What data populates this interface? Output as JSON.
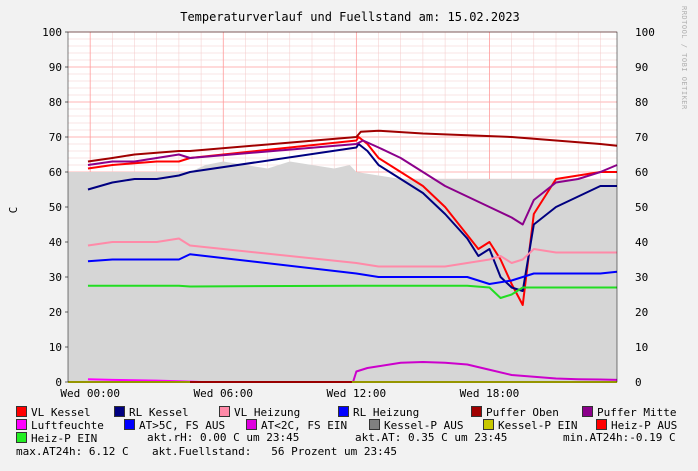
{
  "watermark": "RRDTOOL / TOBI OETIKER",
  "chart_data": {
    "type": "line",
    "title": "Temperaturverlauf und Fuellstand am: 15.02.2023",
    "ylabel": "C",
    "ylim": [
      0,
      100
    ],
    "yticks": [
      0,
      10,
      20,
      30,
      40,
      50,
      60,
      70,
      80,
      90,
      100
    ],
    "xlim": [
      -1,
      23.75
    ],
    "xticks": [
      {
        "value": 0,
        "label": "Wed 00:00"
      },
      {
        "value": 6,
        "label": "Wed 06:00"
      },
      {
        "value": 12,
        "label": "Wed 12:00"
      },
      {
        "value": 18,
        "label": "Wed 18:00"
      }
    ],
    "grid": true,
    "area": {
      "name": "Luftfeuchte-Hintergrund",
      "color": "#d6d6d6",
      "x": [
        -1,
        2,
        4.5,
        5.2,
        6,
        7,
        8,
        9,
        10,
        11,
        11.7,
        12,
        13,
        14,
        15,
        16,
        17,
        18,
        19,
        20,
        21,
        22,
        23,
        23.75
      ],
      "y": [
        60,
        60,
        60,
        62,
        63,
        62,
        61,
        63,
        62,
        61,
        62,
        60,
        59,
        58,
        58,
        58,
        58,
        58,
        58,
        58,
        58,
        58,
        58,
        58
      ]
    },
    "series": [
      {
        "name": "VL Kessel",
        "color": "#ff0000",
        "x": [
          -0.1,
          1,
          2,
          3,
          4,
          4.5,
          12,
          12.1,
          12.5,
          13,
          14,
          15,
          16,
          17,
          17.5,
          18,
          18.5,
          19,
          19.5,
          20,
          21,
          22,
          23,
          23.75
        ],
        "y": [
          61,
          62,
          62.5,
          63,
          63,
          64,
          69,
          70,
          68,
          64,
          60,
          56,
          50,
          42,
          38,
          40,
          35,
          28,
          22,
          48,
          58,
          59,
          60,
          60
        ]
      },
      {
        "name": "RL Kessel",
        "color": "#000080",
        "x": [
          -0.1,
          1,
          2,
          3,
          4,
          4.5,
          12,
          12.1,
          12.5,
          13,
          14,
          15,
          16,
          17,
          17.5,
          18,
          18.5,
          19,
          19.5,
          20,
          21,
          22,
          23,
          23.75
        ],
        "y": [
          55,
          57,
          58,
          58,
          59,
          60,
          67,
          68,
          66,
          62,
          58,
          54,
          48,
          41,
          36,
          38,
          30,
          27,
          26,
          45,
          50,
          53,
          56,
          56
        ]
      },
      {
        "name": "VL Heizung",
        "color": "#ff8aa8",
        "x": [
          -0.1,
          1,
          2,
          3,
          4,
          4.5,
          12,
          13,
          14,
          15,
          16,
          17,
          18,
          18.5,
          19,
          19.5,
          20,
          21,
          22,
          23,
          23.75
        ],
        "y": [
          39,
          40,
          40,
          40,
          41,
          39,
          34,
          33,
          33,
          33,
          33,
          34,
          35,
          36,
          34,
          35,
          38,
          37,
          37,
          37,
          37
        ]
      },
      {
        "name": "RL Heizung",
        "color": "#0000ff",
        "x": [
          -0.1,
          1,
          2,
          3,
          4,
          4.5,
          12,
          13,
          14,
          15,
          16,
          17,
          18,
          19,
          20,
          21,
          22,
          23,
          23.75
        ],
        "y": [
          34.5,
          35,
          35,
          35,
          35,
          36.5,
          31,
          30,
          30,
          30,
          30,
          30,
          28,
          29,
          31,
          31,
          31,
          31,
          31.5
        ]
      },
      {
        "name": "Puffer Oben",
        "color": "#a00000",
        "x": [
          -0.1,
          1,
          2,
          3,
          4,
          4.5,
          12,
          12.2,
          13,
          15,
          17,
          19,
          21,
          23,
          23.75
        ],
        "y": [
          63,
          64,
          65,
          65.5,
          66,
          66,
          70,
          71.5,
          71.8,
          71,
          70.5,
          70,
          69,
          68,
          67.5
        ]
      },
      {
        "name": "Puffer Mitte",
        "color": "#8b008b",
        "x": [
          -0.1,
          1,
          2,
          3,
          4,
          4.5,
          12,
          12.3,
          13,
          14,
          15,
          16,
          17,
          18,
          19,
          19.5,
          20,
          21,
          22,
          23,
          23.75
        ],
        "y": [
          62,
          63,
          63,
          64,
          65,
          64,
          68,
          69,
          67,
          64,
          60,
          56,
          53,
          50,
          47,
          45,
          52,
          57,
          58,
          60,
          62
        ]
      },
      {
        "name": "Luftfeuchte",
        "color": "#ff00ff",
        "x": [
          -0.1,
          1,
          2,
          3,
          4,
          5,
          12,
          13,
          14,
          15,
          16,
          17,
          18,
          19,
          20,
          21,
          22,
          23,
          23.75
        ],
        "y": [
          0.8,
          0.6,
          0.5,
          0.4,
          0.2,
          0,
          0,
          0,
          0,
          0,
          0,
          0,
          0,
          0,
          0,
          0,
          0,
          0,
          0
        ]
      },
      {
        "name": "AT>5C, FS AUS",
        "color": "#0000ff",
        "x": [
          -1,
          -0.05,
          4.5,
          11.8
        ],
        "y": [
          0,
          0,
          0,
          0
        ]
      },
      {
        "name": "AT<2C, FS EIN",
        "color": "#cc00cc",
        "x": [
          11.85,
          12,
          12.5,
          13,
          14,
          15,
          16,
          17,
          18,
          19,
          20,
          21,
          22,
          23,
          23.75
        ],
        "y": [
          0,
          3,
          4,
          4.5,
          5.5,
          5.7,
          5.5,
          5,
          3.5,
          2,
          1.5,
          1,
          0.8,
          0.7,
          0.6
        ]
      },
      {
        "name": "Kessel-P AUS",
        "color": "#808080",
        "x": [
          -1,
          23.75
        ],
        "y": [
          0,
          0
        ]
      },
      {
        "name": "Kessel-P EIN",
        "color": "#c8c800",
        "x": [
          -1,
          23.75
        ],
        "y": [
          0,
          0
        ]
      },
      {
        "name": "Heiz-P AUS",
        "color": "#cc0000",
        "x": [
          4.5,
          11.8
        ],
        "y": [
          0,
          0
        ]
      },
      {
        "name": "Heiz-P EIN",
        "color": "#22dd22",
        "x": [
          -0.1,
          1,
          2,
          3,
          4,
          4.5,
          12,
          13,
          14,
          15,
          16,
          17,
          18,
          18.5,
          19,
          19.5,
          20,
          21,
          22,
          23,
          23.75
        ],
        "y": [
          27.5,
          27.5,
          27.5,
          27.5,
          27.5,
          27.3,
          27.5,
          27.5,
          27.5,
          27.5,
          27.5,
          27.5,
          27,
          24,
          25,
          27,
          27,
          27,
          27,
          27,
          27
        ]
      }
    ],
    "legend": [
      {
        "label": "VL Kessel",
        "color": "#ff0000"
      },
      {
        "label": "RL Kessel",
        "color": "#000080"
      },
      {
        "label": "VL Heizung",
        "color": "#ff8aa8"
      },
      {
        "label": "RL Heizung",
        "color": "#0000ff"
      },
      {
        "label": "Puffer Oben",
        "color": "#a00000"
      },
      {
        "label": "Puffer Mitte",
        "color": "#8b008b"
      },
      {
        "label": "Luftfeuchte",
        "color": "#ff00ff"
      },
      {
        "label": "AT>5C, FS AUS",
        "color": "#0000ff"
      },
      {
        "label": "AT<2C, FS EIN",
        "color": "#dd00dd"
      },
      {
        "label": "Kessel-P AUS",
        "color": "#808080"
      },
      {
        "label": "Kessel-P EIN",
        "color": "#c8c800"
      },
      {
        "label": "Heiz-P AUS",
        "color": "#ff0000"
      },
      {
        "label": "Heiz-P EIN",
        "color": "#22ee22"
      }
    ],
    "info": {
      "rh": "akt.rH: 0.00 C um 23:45",
      "at": "akt.AT: 0.35 C um 23:45",
      "min": "min.AT24h:-0.19 C",
      "max": "max.AT24h: 6.12 C",
      "fuell": "akt.Fuellstand:   56 Prozent um 23:45"
    }
  }
}
